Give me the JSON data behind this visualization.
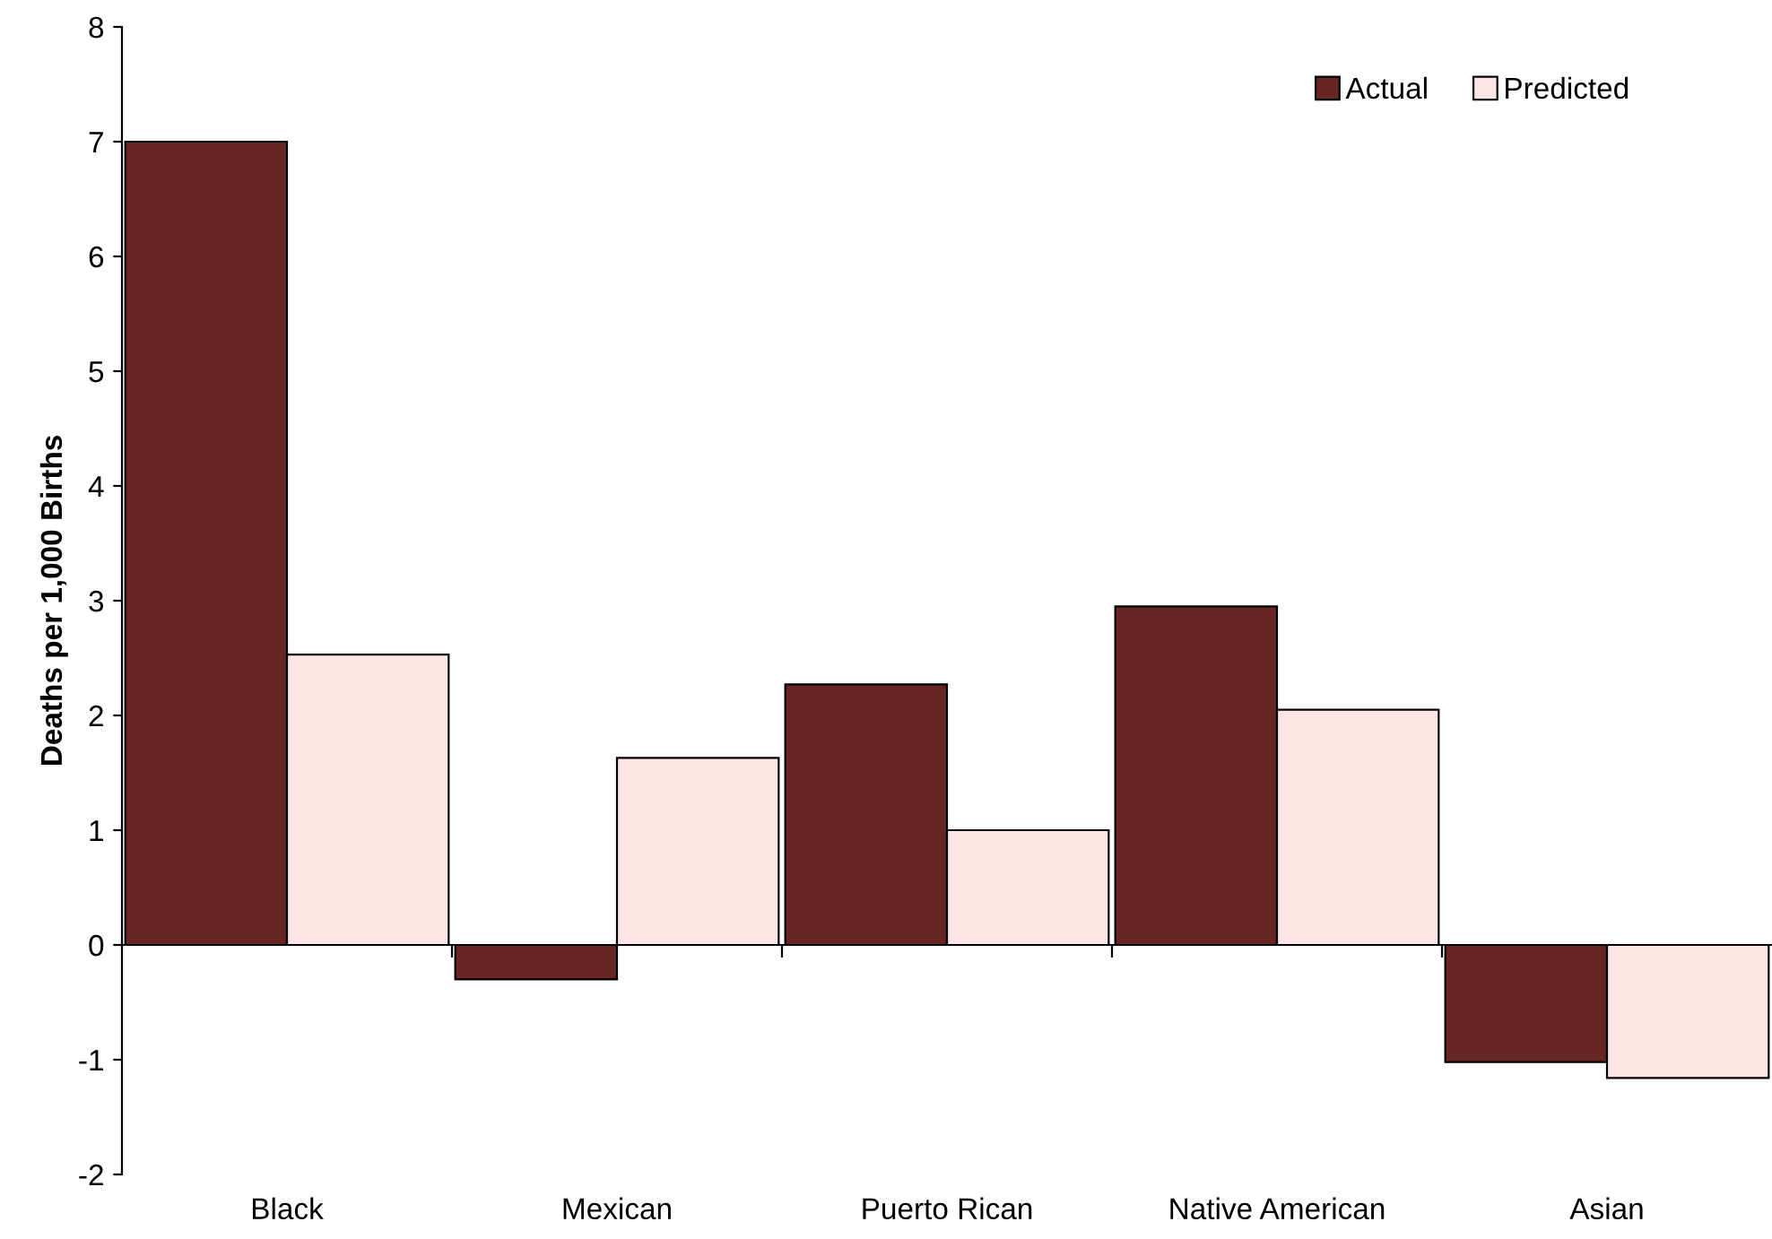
{
  "chart_data": {
    "type": "bar",
    "ylabel": "Deaths per 1,000 Births",
    "categories": [
      "Black",
      "Mexican",
      "Puerto Rican",
      "Native American",
      "Asian"
    ],
    "series": [
      {
        "name": "Actual",
        "color": "#682523",
        "values": [
          7.0,
          -0.3,
          2.27,
          2.95,
          -1.02
        ]
      },
      {
        "name": "Predicted",
        "color": "#fce5e4",
        "values": [
          2.53,
          1.63,
          1.0,
          2.05,
          -1.16
        ]
      }
    ],
    "ylim": [
      -2,
      8
    ],
    "yticks": [
      {
        "value": -2,
        "label": "-2"
      },
      {
        "value": -1,
        "label": "-1"
      },
      0,
      1,
      2,
      3,
      4,
      5,
      6,
      7,
      8
    ],
    "legend": "top right"
  }
}
